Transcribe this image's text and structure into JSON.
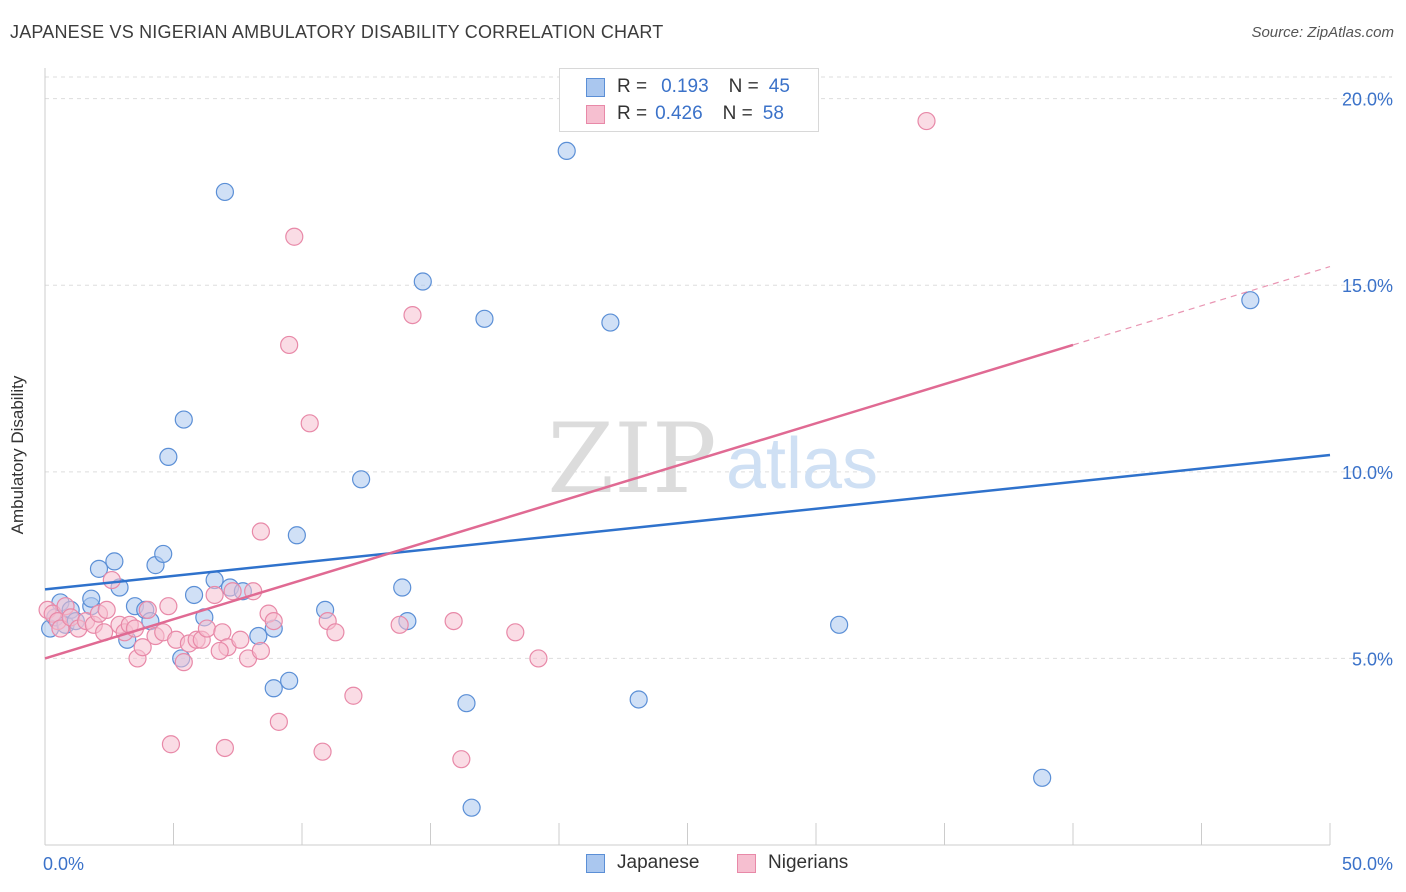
{
  "header": {
    "title": "JAPANESE VS NIGERIAN AMBULATORY DISABILITY CORRELATION CHART",
    "source": "Source: ZipAtlas.com"
  },
  "watermark": {
    "zip": "ZIP",
    "atlas": "atlas"
  },
  "legend": {
    "rows": [
      {
        "r_label": "R =",
        "r_value": "0.193",
        "n_label": "N =",
        "n_value": "45"
      },
      {
        "r_label": "R =",
        "r_value": "0.426",
        "n_label": "N =",
        "n_value": "58"
      }
    ]
  },
  "colors": {
    "japanese_fill": "#aac7ef",
    "japanese_stroke": "#5b8fd6",
    "japanese_line": "#2f72cc",
    "nigerian_fill": "#f6bfd0",
    "nigerian_stroke": "#e889a8",
    "nigerian_line": "#e06a93",
    "tick_label": "#3b72c9"
  },
  "chart_data": {
    "type": "scatter",
    "title": "JAPANESE VS NIGERIAN AMBULATORY DISABILITY CORRELATION CHART",
    "xlabel": "",
    "ylabel": "Ambulatory Disability",
    "xlim": [
      0,
      50
    ],
    "ylim": [
      0,
      20.5
    ],
    "x_tick_labels": [
      "0.0%",
      "50.0%"
    ],
    "y_ticks": [
      5,
      10,
      15,
      20
    ],
    "y_tick_labels": [
      "5.0%",
      "10.0%",
      "15.0%",
      "20.0%"
    ],
    "grid": true,
    "legend_position": "top-center",
    "series": [
      {
        "name": "Japanese",
        "r": 0.193,
        "n": 45,
        "trend": {
          "x0": 0,
          "y0": 6.85,
          "x1": 50,
          "y1": 10.45
        },
        "points": [
          [
            0.2,
            5.8
          ],
          [
            0.4,
            6.1
          ],
          [
            0.6,
            6.5
          ],
          [
            0.8,
            5.9
          ],
          [
            1.0,
            6.3
          ],
          [
            1.2,
            6.0
          ],
          [
            1.8,
            6.4
          ],
          [
            1.8,
            6.6
          ],
          [
            2.1,
            7.4
          ],
          [
            2.7,
            7.6
          ],
          [
            2.9,
            6.9
          ],
          [
            3.2,
            5.5
          ],
          [
            3.5,
            6.4
          ],
          [
            3.9,
            6.3
          ],
          [
            4.1,
            6.0
          ],
          [
            4.3,
            7.5
          ],
          [
            4.6,
            7.8
          ],
          [
            4.8,
            10.4
          ],
          [
            5.3,
            5.0
          ],
          [
            5.4,
            11.4
          ],
          [
            5.8,
            6.7
          ],
          [
            6.2,
            6.1
          ],
          [
            6.6,
            7.1
          ],
          [
            7.0,
            17.5
          ],
          [
            7.2,
            6.9
          ],
          [
            7.7,
            6.8
          ],
          [
            8.3,
            5.6
          ],
          [
            8.9,
            5.8
          ],
          [
            8.9,
            4.2
          ],
          [
            9.5,
            4.4
          ],
          [
            9.8,
            8.3
          ],
          [
            10.9,
            6.3
          ],
          [
            12.3,
            9.8
          ],
          [
            13.9,
            6.9
          ],
          [
            14.1,
            6.0
          ],
          [
            14.7,
            15.1
          ],
          [
            16.4,
            3.8
          ],
          [
            16.6,
            1.0
          ],
          [
            17.1,
            14.1
          ],
          [
            20.3,
            18.6
          ],
          [
            22.0,
            14.0
          ],
          [
            23.1,
            3.9
          ],
          [
            30.9,
            5.9
          ],
          [
            38.8,
            1.8
          ],
          [
            46.9,
            14.6
          ]
        ]
      },
      {
        "name": "Nigerians",
        "r": 0.426,
        "n": 58,
        "trend": {
          "x0": 0,
          "y0": 5.0,
          "x1": 40,
          "y1": 13.4,
          "dash_x1": 50,
          "dash_y1": 15.5
        },
        "points": [
          [
            0.1,
            6.3
          ],
          [
            0.3,
            6.2
          ],
          [
            0.5,
            6.0
          ],
          [
            0.6,
            5.8
          ],
          [
            0.8,
            6.4
          ],
          [
            1.0,
            6.1
          ],
          [
            1.3,
            5.8
          ],
          [
            1.6,
            6.0
          ],
          [
            1.9,
            5.9
          ],
          [
            2.1,
            6.2
          ],
          [
            2.3,
            5.7
          ],
          [
            2.6,
            7.1
          ],
          [
            2.9,
            5.9
          ],
          [
            3.1,
            5.7
          ],
          [
            3.3,
            5.9
          ],
          [
            3.6,
            5.0
          ],
          [
            3.8,
            5.3
          ],
          [
            4.0,
            6.3
          ],
          [
            4.3,
            5.6
          ],
          [
            4.6,
            5.7
          ],
          [
            4.8,
            6.4
          ],
          [
            5.1,
            5.5
          ],
          [
            5.4,
            4.9
          ],
          [
            5.6,
            5.4
          ],
          [
            5.9,
            5.5
          ],
          [
            6.1,
            5.5
          ],
          [
            6.3,
            5.8
          ],
          [
            6.6,
            6.7
          ],
          [
            6.9,
            5.7
          ],
          [
            7.1,
            5.3
          ],
          [
            7.3,
            6.8
          ],
          [
            7.6,
            5.5
          ],
          [
            7.9,
            5.0
          ],
          [
            8.1,
            6.8
          ],
          [
            8.4,
            5.2
          ],
          [
            8.7,
            6.2
          ],
          [
            8.9,
            6.0
          ],
          [
            4.9,
            2.7
          ],
          [
            7.0,
            2.6
          ],
          [
            8.4,
            8.4
          ],
          [
            9.1,
            3.3
          ],
          [
            9.5,
            13.4
          ],
          [
            9.7,
            16.3
          ],
          [
            10.3,
            11.3
          ],
          [
            10.8,
            2.5
          ],
          [
            11.0,
            6.0
          ],
          [
            11.3,
            5.7
          ],
          [
            12.0,
            4.0
          ],
          [
            13.8,
            5.9
          ],
          [
            14.3,
            14.2
          ],
          [
            15.9,
            6.0
          ],
          [
            16.2,
            2.3
          ],
          [
            18.3,
            5.7
          ],
          [
            19.2,
            5.0
          ],
          [
            34.3,
            19.4
          ],
          [
            3.5,
            5.8
          ],
          [
            6.8,
            5.2
          ],
          [
            2.4,
            6.3
          ]
        ]
      }
    ]
  }
}
